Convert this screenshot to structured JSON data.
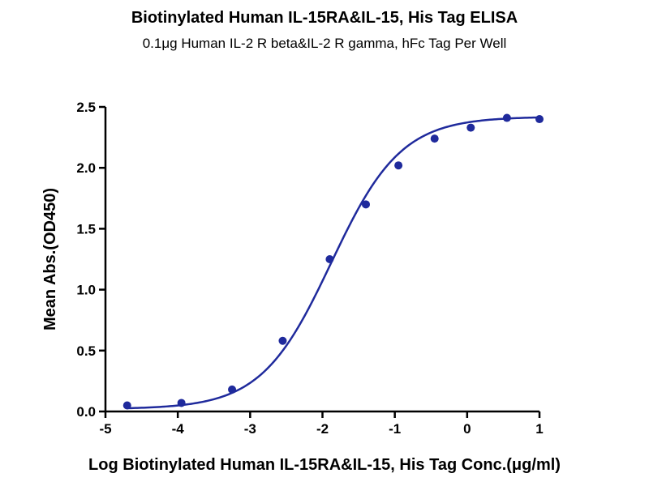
{
  "chart_data": {
    "type": "scatter",
    "title": "Biotinylated Human IL-15RA&IL-15, His Tag ELISA",
    "subtitle": "0.1μg Human IL-2 R beta&IL-2 R gamma, hFc Tag Per Well",
    "xlabel": "Log Biotinylated Human IL-15RA&IL-15, His Tag Conc.(μg/ml)",
    "ylabel": "Mean Abs.(OD450)",
    "xlim": [
      -5,
      1
    ],
    "ylim": [
      0,
      2.5
    ],
    "x_ticks": [
      -5,
      -4,
      -3,
      -2,
      -1,
      0,
      1
    ],
    "x_tick_labels": [
      "-5",
      "-4",
      "-3",
      "-2",
      "-1",
      "0",
      "1"
    ],
    "y_ticks": [
      0,
      0.5,
      1,
      1.5,
      2,
      2.5
    ],
    "y_tick_labels": [
      "0.0",
      "0.5",
      "1.0",
      "1.5",
      "2.0",
      "2.5"
    ],
    "grid": false,
    "series": [
      {
        "color": "#1f2a9c",
        "x": [
          -4.7,
          -3.95,
          -3.25,
          -2.55,
          -1.9,
          -1.4,
          -0.95,
          -0.45,
          0.05,
          0.55,
          1.0
        ],
        "y": [
          0.05,
          0.07,
          0.18,
          0.58,
          1.25,
          1.7,
          2.02,
          2.24,
          2.33,
          2.41,
          2.4
        ]
      }
    ],
    "fit": {
      "type": "4PL",
      "bottom": 0.02,
      "top": 2.42,
      "logEC50": -1.88,
      "hill": 0.9,
      "color": "#1f2a9c"
    }
  }
}
